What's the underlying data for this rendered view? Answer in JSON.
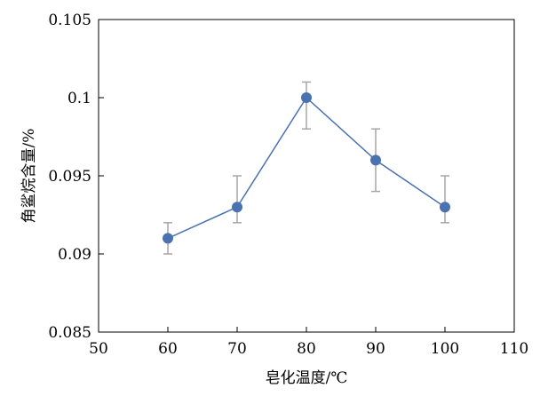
{
  "chart_data": {
    "type": "line",
    "title": "",
    "xlabel": "皂化温度/℃",
    "ylabel": "角鲨烷含量/%",
    "x": [
      60,
      70,
      80,
      90,
      100
    ],
    "series": [
      {
        "values": [
          0.091,
          0.093,
          0.1,
          0.096,
          0.093
        ],
        "error_low": [
          0.09,
          0.092,
          0.098,
          0.094,
          0.092
        ],
        "error_high": [
          0.092,
          0.095,
          0.101,
          0.098,
          0.095
        ]
      }
    ],
    "xlim": [
      50,
      110
    ],
    "ylim": [
      0.085,
      0.105
    ],
    "xticks": [
      "50",
      "60",
      "70",
      "80",
      "90",
      "100",
      "110"
    ],
    "yticks": [
      "0.085",
      "0.09",
      "0.095",
      "0.1",
      "0.105"
    ],
    "grid": false,
    "legend": "none",
    "colors": {
      "line": "#4a72b0",
      "marker": "#4a72b0",
      "error_bar": "#a6a6a6",
      "axis": "#000000"
    }
  }
}
